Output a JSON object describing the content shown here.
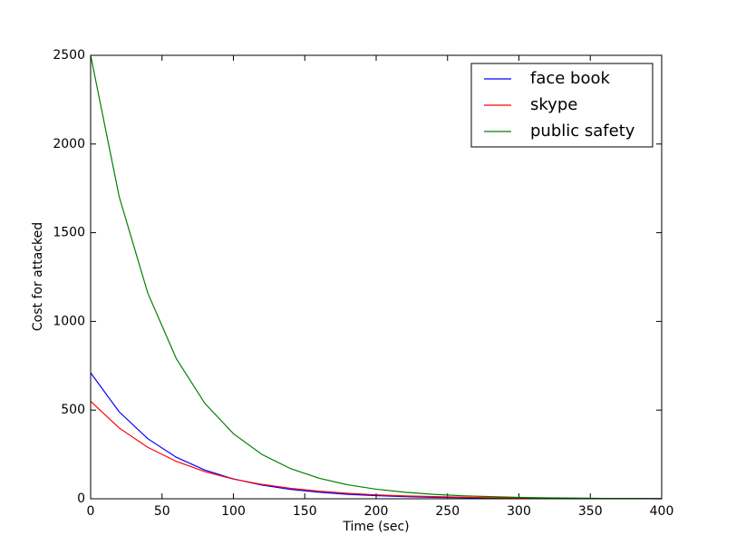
{
  "chart_data": {
    "type": "line",
    "xlabel": "Time (sec)",
    "ylabel": "Cost for attacked",
    "x": [
      0,
      20,
      40,
      60,
      80,
      100,
      120,
      140,
      160,
      180,
      200,
      220,
      240,
      260,
      280,
      300,
      320,
      340,
      360,
      380,
      400
    ],
    "series": [
      {
        "name": "face book",
        "color": "#0000ff",
        "values": [
          710,
          490,
          339,
          234,
          162,
          112,
          77,
          53,
          37,
          25,
          18,
          12,
          8,
          6,
          4,
          3,
          2,
          1,
          1,
          1,
          0
        ]
      },
      {
        "name": "skype",
        "color": "#ff0000",
        "values": [
          550,
          399,
          290,
          211,
          153,
          111,
          81,
          59,
          43,
          31,
          22,
          16,
          12,
          9,
          6,
          5,
          3,
          2,
          2,
          1,
          1
        ]
      },
      {
        "name": "public safety",
        "color": "#008000",
        "values": [
          2500,
          1703,
          1160,
          790,
          538,
          367,
          250,
          170,
          116,
          79,
          54,
          37,
          25,
          17,
          12,
          8,
          5,
          4,
          2,
          2,
          1
        ]
      }
    ],
    "xlim": [
      0,
      400
    ],
    "xticks": [
      0,
      50,
      100,
      150,
      200,
      250,
      300,
      350,
      400
    ],
    "ylim": [
      0,
      2500
    ],
    "yticks": [
      0,
      500,
      1000,
      1500,
      2000,
      2500
    ],
    "legend": "upper right"
  }
}
